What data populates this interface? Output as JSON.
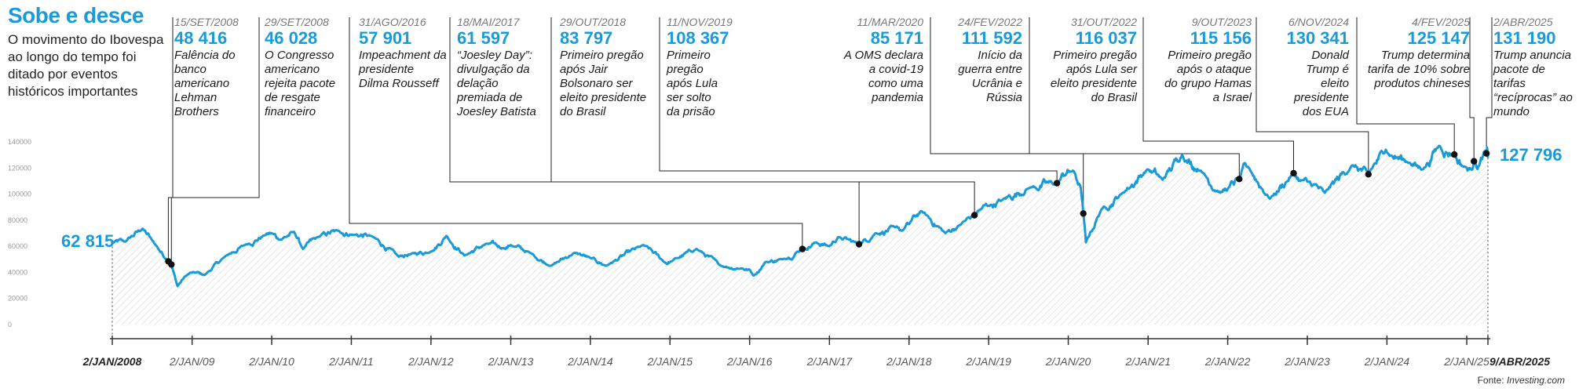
{
  "title": "Sobe e desce",
  "subtitle": "O movimento do Ibovespa ao longo do tempo foi ditado por eventos históricos importantes",
  "source_label": "Fonte:",
  "source_name": "Investing.com",
  "colors": {
    "line": "#1a9bd7",
    "accent": "#1a9bd7",
    "area_hatch": "#d4d4d4",
    "dot": "#111111",
    "leader": "#222222"
  },
  "start_label": "62 815",
  "end_label": "127 796",
  "events": [
    {
      "date": "15/SET/2008",
      "value": "48 416",
      "text": "Falência do banco americano Lehman Brothers"
    },
    {
      "date": "29/SET/2008",
      "value": "46 028",
      "text": "O Congresso americano rejeita pacote de resgate financeiro"
    },
    {
      "date": "31/AGO/2016",
      "value": "57 901",
      "text": "Impeachment da presidente Dilma Rousseff"
    },
    {
      "date": "18/MAI/2017",
      "value": "61 597",
      "text": "“Joesley Day”: divulgação da delação premiada de Joesley Batista"
    },
    {
      "date": "29/OUT/2018",
      "value": "83 797",
      "text": "Primeiro pregão após Jair Bolsonaro ser eleito presidente do Brasil"
    },
    {
      "date": "11/NOV/2019",
      "value": "108 367",
      "text": "Primeiro pregão após Lula ser solto da prisão"
    },
    {
      "date": "11/MAR/2020",
      "value": "85 171",
      "text": "A OMS declara a covid-19 como uma pandemia"
    },
    {
      "date": "24/FEV/2022",
      "value": "111 592",
      "text": "Início da guerra entre Ucrânia e Rússia"
    },
    {
      "date": "31/OUT/2022",
      "value": "116 037",
      "text": "Primeiro pregão após Lula ser eleito presidente do Brasil"
    },
    {
      "date": "9/OUT/2023",
      "value": "115 156",
      "text": "Primeiro pregão após o ataque do grupo Hamas a Israel"
    },
    {
      "date": "6/NOV/2024",
      "value": "130 341",
      "text": "Donald Trump é eleito presidente dos EUA"
    },
    {
      "date": "4/FEV/2025",
      "value": "125 147",
      "text": "Trump determina tarifa de 10% sobre produtos chineses"
    },
    {
      "date": "2/ABR/2025",
      "value": "131 190",
      "text": "Trump anuncia pacote de tarifas “recíprocas” ao mundo"
    }
  ],
  "chart_data": {
    "type": "line",
    "title": "Sobe e desce",
    "subtitle": "O movimento do Ibovespa ao longo do tempo foi ditado por eventos históricos importantes",
    "ylim": [
      0,
      140000
    ],
    "y_ticks": [
      "140000",
      "120000",
      "100000",
      "80000",
      "60000",
      "40000",
      "20000",
      "0"
    ],
    "x_ticks": [
      "2/JAN/2008",
      "2/JAN/09",
      "2/JAN/10",
      "2/JAN/11",
      "2/JAN/12",
      "2/JAN/13",
      "2/JAN/14",
      "2/JAN/15",
      "2/JAN/16",
      "2/JAN/17",
      "2/JAN/18",
      "2/JAN/19",
      "2/JAN/20",
      "2/JAN/21",
      "2/JAN/22",
      "2/JAN/23",
      "2/JAN/24",
      "2/JAN/25",
      "9/ABR/2025"
    ],
    "grid": false,
    "series": [
      {
        "x": [
          "2008-01-02",
          "2008-03-01",
          "2008-05-20",
          "2008-07-01",
          "2008-09-15",
          "2008-09-29",
          "2008-10-27",
          "2008-12-01",
          "2009-01-02",
          "2009-03-01",
          "2009-06-01",
          "2009-09-01",
          "2009-12-01",
          "2010-01-02",
          "2010-02-05",
          "2010-04-15",
          "2010-05-25",
          "2010-08-01",
          "2010-11-04",
          "2011-01-02",
          "2011-04-01",
          "2011-08-08",
          "2011-10-01",
          "2012-01-02",
          "2012-03-13",
          "2012-06-04",
          "2012-09-14",
          "2012-12-01",
          "2013-01-02",
          "2013-04-01",
          "2013-07-03",
          "2013-10-21",
          "2014-01-02",
          "2014-03-14",
          "2014-09-02",
          "2014-12-15",
          "2015-01-02",
          "2015-05-04",
          "2015-08-24",
          "2015-12-01",
          "2016-01-02",
          "2016-01-21",
          "2016-03-15",
          "2016-06-01",
          "2016-08-31",
          "2016-11-01",
          "2017-01-02",
          "2017-02-10",
          "2017-05-18",
          "2017-08-01",
          "2017-10-31",
          "2017-12-01",
          "2018-01-02",
          "2018-02-26",
          "2018-06-18",
          "2018-08-20",
          "2018-10-29",
          "2018-12-01",
          "2019-01-02",
          "2019-03-01",
          "2019-07-10",
          "2019-11-11",
          "2019-12-27",
          "2020-01-02",
          "2020-01-23",
          "2020-02-28",
          "2020-03-11",
          "2020-03-23",
          "2020-06-01",
          "2020-09-01",
          "2020-12-30",
          "2021-01-02",
          "2021-03-09",
          "2021-06-07",
          "2021-09-01",
          "2021-11-30",
          "2022-01-02",
          "2022-02-24",
          "2022-04-04",
          "2022-07-14",
          "2022-10-31",
          "2022-12-01",
          "2023-01-02",
          "2023-03-23",
          "2023-07-26",
          "2023-10-09",
          "2023-12-28",
          "2024-01-02",
          "2024-04-16",
          "2024-06-13",
          "2024-08-28",
          "2024-11-06",
          "2024-12-18",
          "2025-01-02",
          "2025-01-13",
          "2025-02-04",
          "2025-02-28",
          "2025-03-17",
          "2025-04-02",
          "2025-04-09"
        ],
        "y": [
          62815,
          63500,
          73500,
          65000,
          48416,
          46028,
          29500,
          37000,
          40000,
          38000,
          52000,
          61000,
          68500,
          70000,
          65000,
          71000,
          58000,
          67000,
          72000,
          69000,
          68000,
          52000,
          54000,
          56000,
          68000,
          53000,
          62000,
          58500,
          61000,
          55000,
          45000,
          55000,
          51000,
          45000,
          61000,
          47000,
          48000,
          58000,
          45000,
          43000,
          42000,
          37500,
          48000,
          50000,
          57901,
          63000,
          60000,
          67000,
          61597,
          70000,
          74500,
          72000,
          77000,
          87000,
          70000,
          76000,
          83797,
          89000,
          91000,
          95000,
          105000,
          108367,
          116500,
          117000,
          118000,
          105000,
          85171,
          63000,
          88000,
          100000,
          119000,
          119000,
          111000,
          130000,
          118000,
          101000,
          104000,
          111592,
          121000,
          96500,
          116037,
          110000,
          109500,
          101000,
          122000,
          115156,
          134000,
          132000,
          124000,
          119000,
          137000,
          130341,
          121000,
          120000,
          119000,
          125147,
          122000,
          129000,
          131190,
          127796
        ]
      }
    ],
    "start_value": 62815,
    "end_value": 127796
  }
}
